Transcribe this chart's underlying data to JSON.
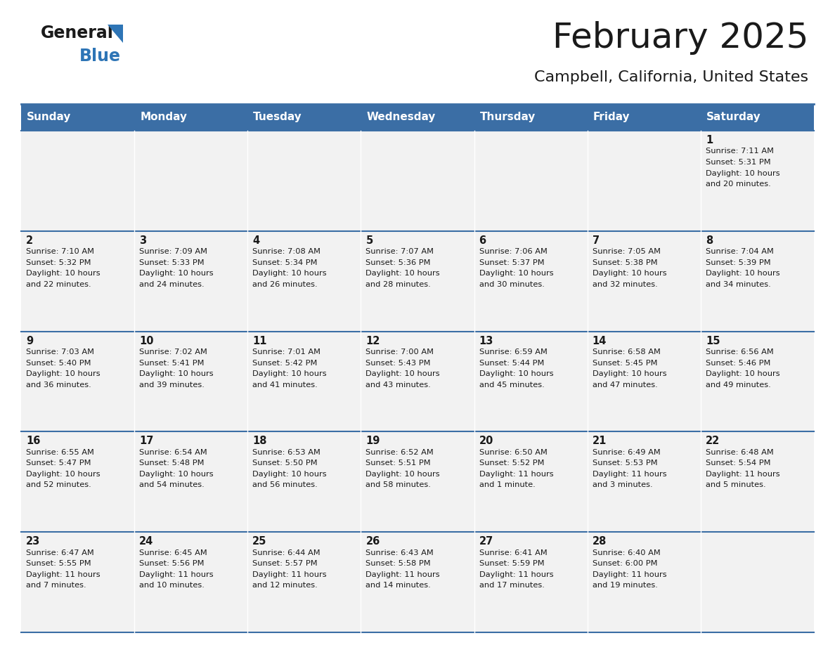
{
  "title": "February 2025",
  "subtitle": "Campbell, California, United States",
  "header_bg": "#3B6EA5",
  "header_text_color": "#FFFFFF",
  "cell_bg": "#F2F2F2",
  "border_color": "#3B6EA5",
  "day_headers": [
    "Sunday",
    "Monday",
    "Tuesday",
    "Wednesday",
    "Thursday",
    "Friday",
    "Saturday"
  ],
  "title_color": "#1a1a1a",
  "subtitle_color": "#1a1a1a",
  "cell_text_color": "#1a1a1a",
  "days": [
    {
      "day": 1,
      "col": 6,
      "row": 0,
      "sunrise": "7:11 AM",
      "sunset": "5:31 PM",
      "daylight_line1": "Daylight: 10 hours",
      "daylight_line2": "and 20 minutes."
    },
    {
      "day": 2,
      "col": 0,
      "row": 1,
      "sunrise": "7:10 AM",
      "sunset": "5:32 PM",
      "daylight_line1": "Daylight: 10 hours",
      "daylight_line2": "and 22 minutes."
    },
    {
      "day": 3,
      "col": 1,
      "row": 1,
      "sunrise": "7:09 AM",
      "sunset": "5:33 PM",
      "daylight_line1": "Daylight: 10 hours",
      "daylight_line2": "and 24 minutes."
    },
    {
      "day": 4,
      "col": 2,
      "row": 1,
      "sunrise": "7:08 AM",
      "sunset": "5:34 PM",
      "daylight_line1": "Daylight: 10 hours",
      "daylight_line2": "and 26 minutes."
    },
    {
      "day": 5,
      "col": 3,
      "row": 1,
      "sunrise": "7:07 AM",
      "sunset": "5:36 PM",
      "daylight_line1": "Daylight: 10 hours",
      "daylight_line2": "and 28 minutes."
    },
    {
      "day": 6,
      "col": 4,
      "row": 1,
      "sunrise": "7:06 AM",
      "sunset": "5:37 PM",
      "daylight_line1": "Daylight: 10 hours",
      "daylight_line2": "and 30 minutes."
    },
    {
      "day": 7,
      "col": 5,
      "row": 1,
      "sunrise": "7:05 AM",
      "sunset": "5:38 PM",
      "daylight_line1": "Daylight: 10 hours",
      "daylight_line2": "and 32 minutes."
    },
    {
      "day": 8,
      "col": 6,
      "row": 1,
      "sunrise": "7:04 AM",
      "sunset": "5:39 PM",
      "daylight_line1": "Daylight: 10 hours",
      "daylight_line2": "and 34 minutes."
    },
    {
      "day": 9,
      "col": 0,
      "row": 2,
      "sunrise": "7:03 AM",
      "sunset": "5:40 PM",
      "daylight_line1": "Daylight: 10 hours",
      "daylight_line2": "and 36 minutes."
    },
    {
      "day": 10,
      "col": 1,
      "row": 2,
      "sunrise": "7:02 AM",
      "sunset": "5:41 PM",
      "daylight_line1": "Daylight: 10 hours",
      "daylight_line2": "and 39 minutes."
    },
    {
      "day": 11,
      "col": 2,
      "row": 2,
      "sunrise": "7:01 AM",
      "sunset": "5:42 PM",
      "daylight_line1": "Daylight: 10 hours",
      "daylight_line2": "and 41 minutes."
    },
    {
      "day": 12,
      "col": 3,
      "row": 2,
      "sunrise": "7:00 AM",
      "sunset": "5:43 PM",
      "daylight_line1": "Daylight: 10 hours",
      "daylight_line2": "and 43 minutes."
    },
    {
      "day": 13,
      "col": 4,
      "row": 2,
      "sunrise": "6:59 AM",
      "sunset": "5:44 PM",
      "daylight_line1": "Daylight: 10 hours",
      "daylight_line2": "and 45 minutes."
    },
    {
      "day": 14,
      "col": 5,
      "row": 2,
      "sunrise": "6:58 AM",
      "sunset": "5:45 PM",
      "daylight_line1": "Daylight: 10 hours",
      "daylight_line2": "and 47 minutes."
    },
    {
      "day": 15,
      "col": 6,
      "row": 2,
      "sunrise": "6:56 AM",
      "sunset": "5:46 PM",
      "daylight_line1": "Daylight: 10 hours",
      "daylight_line2": "and 49 minutes."
    },
    {
      "day": 16,
      "col": 0,
      "row": 3,
      "sunrise": "6:55 AM",
      "sunset": "5:47 PM",
      "daylight_line1": "Daylight: 10 hours",
      "daylight_line2": "and 52 minutes."
    },
    {
      "day": 17,
      "col": 1,
      "row": 3,
      "sunrise": "6:54 AM",
      "sunset": "5:48 PM",
      "daylight_line1": "Daylight: 10 hours",
      "daylight_line2": "and 54 minutes."
    },
    {
      "day": 18,
      "col": 2,
      "row": 3,
      "sunrise": "6:53 AM",
      "sunset": "5:50 PM",
      "daylight_line1": "Daylight: 10 hours",
      "daylight_line2": "and 56 minutes."
    },
    {
      "day": 19,
      "col": 3,
      "row": 3,
      "sunrise": "6:52 AM",
      "sunset": "5:51 PM",
      "daylight_line1": "Daylight: 10 hours",
      "daylight_line2": "and 58 minutes."
    },
    {
      "day": 20,
      "col": 4,
      "row": 3,
      "sunrise": "6:50 AM",
      "sunset": "5:52 PM",
      "daylight_line1": "Daylight: 11 hours",
      "daylight_line2": "and 1 minute."
    },
    {
      "day": 21,
      "col": 5,
      "row": 3,
      "sunrise": "6:49 AM",
      "sunset": "5:53 PM",
      "daylight_line1": "Daylight: 11 hours",
      "daylight_line2": "and 3 minutes."
    },
    {
      "day": 22,
      "col": 6,
      "row": 3,
      "sunrise": "6:48 AM",
      "sunset": "5:54 PM",
      "daylight_line1": "Daylight: 11 hours",
      "daylight_line2": "and 5 minutes."
    },
    {
      "day": 23,
      "col": 0,
      "row": 4,
      "sunrise": "6:47 AM",
      "sunset": "5:55 PM",
      "daylight_line1": "Daylight: 11 hours",
      "daylight_line2": "and 7 minutes."
    },
    {
      "day": 24,
      "col": 1,
      "row": 4,
      "sunrise": "6:45 AM",
      "sunset": "5:56 PM",
      "daylight_line1": "Daylight: 11 hours",
      "daylight_line2": "and 10 minutes."
    },
    {
      "day": 25,
      "col": 2,
      "row": 4,
      "sunrise": "6:44 AM",
      "sunset": "5:57 PM",
      "daylight_line1": "Daylight: 11 hours",
      "daylight_line2": "and 12 minutes."
    },
    {
      "day": 26,
      "col": 3,
      "row": 4,
      "sunrise": "6:43 AM",
      "sunset": "5:58 PM",
      "daylight_line1": "Daylight: 11 hours",
      "daylight_line2": "and 14 minutes."
    },
    {
      "day": 27,
      "col": 4,
      "row": 4,
      "sunrise": "6:41 AM",
      "sunset": "5:59 PM",
      "daylight_line1": "Daylight: 11 hours",
      "daylight_line2": "and 17 minutes."
    },
    {
      "day": 28,
      "col": 5,
      "row": 4,
      "sunrise": "6:40 AM",
      "sunset": "6:00 PM",
      "daylight_line1": "Daylight: 11 hours",
      "daylight_line2": "and 19 minutes."
    }
  ],
  "logo_text1": "General",
  "logo_text2": "Blue",
  "logo_triangle_color": "#2E75B6",
  "logo_text1_color": "#1a1a1a",
  "logo_text2_color": "#2E75B6",
  "fig_width": 11.88,
  "fig_height": 9.18,
  "dpi": 100
}
